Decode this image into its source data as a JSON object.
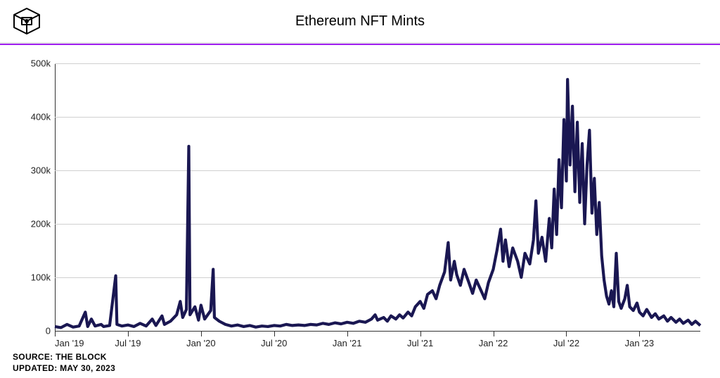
{
  "header": {
    "title": "Ethereum NFT Mints",
    "accent_color": "#a020f0",
    "border_color": "#e5e5e5"
  },
  "footer": {
    "source_label": "SOURCE: THE BLOCK",
    "updated_label": "UPDATED: MAY 30, 2023"
  },
  "chart": {
    "type": "line",
    "line_color": "#1a1752",
    "line_width": 1.4,
    "background_color": "#ffffff",
    "grid_color": "#d0d0d0",
    "y": {
      "min": 0,
      "max": 500000,
      "ticks": [
        0,
        100000,
        200000,
        300000,
        400000,
        500000
      ],
      "tick_labels": [
        "0",
        "100k",
        "200k",
        "300k",
        "400k",
        "500k"
      ],
      "label_fontsize": 13
    },
    "x": {
      "min": 0,
      "max": 53,
      "ticks": [
        0,
        6,
        12,
        18,
        24,
        30,
        36,
        42,
        48
      ],
      "tick_labels": [
        "Jan '19",
        "Jul '19",
        "Jan '20",
        "Jul '20",
        "Jan '21",
        "Jul '21",
        "Jan '22",
        "Jul '22",
        "Jan '23"
      ],
      "label_fontsize": 13
    },
    "series": [
      {
        "x": 0.0,
        "y": 8000
      },
      {
        "x": 0.5,
        "y": 6000
      },
      {
        "x": 1.0,
        "y": 12000
      },
      {
        "x": 1.5,
        "y": 7000
      },
      {
        "x": 2.0,
        "y": 9000
      },
      {
        "x": 2.5,
        "y": 35000
      },
      {
        "x": 2.7,
        "y": 8000
      },
      {
        "x": 3.0,
        "y": 22000
      },
      {
        "x": 3.3,
        "y": 9000
      },
      {
        "x": 3.8,
        "y": 12000
      },
      {
        "x": 4.0,
        "y": 8000
      },
      {
        "x": 4.5,
        "y": 10000
      },
      {
        "x": 5.0,
        "y": 103000
      },
      {
        "x": 5.1,
        "y": 12000
      },
      {
        "x": 5.5,
        "y": 9000
      },
      {
        "x": 6.0,
        "y": 11000
      },
      {
        "x": 6.5,
        "y": 8000
      },
      {
        "x": 7.0,
        "y": 14000
      },
      {
        "x": 7.5,
        "y": 9000
      },
      {
        "x": 8.0,
        "y": 22000
      },
      {
        "x": 8.3,
        "y": 10000
      },
      {
        "x": 8.8,
        "y": 28000
      },
      {
        "x": 9.0,
        "y": 12000
      },
      {
        "x": 9.5,
        "y": 18000
      },
      {
        "x": 10.0,
        "y": 30000
      },
      {
        "x": 10.3,
        "y": 55000
      },
      {
        "x": 10.5,
        "y": 25000
      },
      {
        "x": 10.8,
        "y": 40000
      },
      {
        "x": 11.0,
        "y": 345000
      },
      {
        "x": 11.1,
        "y": 30000
      },
      {
        "x": 11.5,
        "y": 45000
      },
      {
        "x": 11.8,
        "y": 20000
      },
      {
        "x": 12.0,
        "y": 48000
      },
      {
        "x": 12.3,
        "y": 22000
      },
      {
        "x": 12.8,
        "y": 38000
      },
      {
        "x": 13.0,
        "y": 115000
      },
      {
        "x": 13.1,
        "y": 25000
      },
      {
        "x": 13.5,
        "y": 18000
      },
      {
        "x": 14.0,
        "y": 12000
      },
      {
        "x": 14.5,
        "y": 9000
      },
      {
        "x": 15.0,
        "y": 11000
      },
      {
        "x": 15.5,
        "y": 8000
      },
      {
        "x": 16.0,
        "y": 10000
      },
      {
        "x": 16.5,
        "y": 7000
      },
      {
        "x": 17.0,
        "y": 9000
      },
      {
        "x": 17.5,
        "y": 8000
      },
      {
        "x": 18.0,
        "y": 10000
      },
      {
        "x": 18.5,
        "y": 9000
      },
      {
        "x": 19.0,
        "y": 12000
      },
      {
        "x": 19.5,
        "y": 10000
      },
      {
        "x": 20.0,
        "y": 11000
      },
      {
        "x": 20.5,
        "y": 10000
      },
      {
        "x": 21.0,
        "y": 12000
      },
      {
        "x": 21.5,
        "y": 11000
      },
      {
        "x": 22.0,
        "y": 14000
      },
      {
        "x": 22.5,
        "y": 12000
      },
      {
        "x": 23.0,
        "y": 15000
      },
      {
        "x": 23.5,
        "y": 13000
      },
      {
        "x": 24.0,
        "y": 16000
      },
      {
        "x": 24.5,
        "y": 14000
      },
      {
        "x": 25.0,
        "y": 18000
      },
      {
        "x": 25.5,
        "y": 16000
      },
      {
        "x": 26.0,
        "y": 22000
      },
      {
        "x": 26.3,
        "y": 30000
      },
      {
        "x": 26.5,
        "y": 20000
      },
      {
        "x": 27.0,
        "y": 25000
      },
      {
        "x": 27.3,
        "y": 18000
      },
      {
        "x": 27.6,
        "y": 28000
      },
      {
        "x": 28.0,
        "y": 22000
      },
      {
        "x": 28.3,
        "y": 30000
      },
      {
        "x": 28.6,
        "y": 24000
      },
      {
        "x": 29.0,
        "y": 35000
      },
      {
        "x": 29.3,
        "y": 28000
      },
      {
        "x": 29.6,
        "y": 45000
      },
      {
        "x": 30.0,
        "y": 55000
      },
      {
        "x": 30.3,
        "y": 42000
      },
      {
        "x": 30.6,
        "y": 68000
      },
      {
        "x": 31.0,
        "y": 75000
      },
      {
        "x": 31.3,
        "y": 60000
      },
      {
        "x": 31.6,
        "y": 85000
      },
      {
        "x": 32.0,
        "y": 110000
      },
      {
        "x": 32.3,
        "y": 165000
      },
      {
        "x": 32.5,
        "y": 95000
      },
      {
        "x": 32.8,
        "y": 130000
      },
      {
        "x": 33.0,
        "y": 105000
      },
      {
        "x": 33.3,
        "y": 85000
      },
      {
        "x": 33.6,
        "y": 115000
      },
      {
        "x": 34.0,
        "y": 90000
      },
      {
        "x": 34.3,
        "y": 70000
      },
      {
        "x": 34.6,
        "y": 95000
      },
      {
        "x": 35.0,
        "y": 75000
      },
      {
        "x": 35.3,
        "y": 60000
      },
      {
        "x": 35.6,
        "y": 90000
      },
      {
        "x": 36.0,
        "y": 115000
      },
      {
        "x": 36.3,
        "y": 150000
      },
      {
        "x": 36.6,
        "y": 190000
      },
      {
        "x": 36.8,
        "y": 130000
      },
      {
        "x": 37.0,
        "y": 170000
      },
      {
        "x": 37.3,
        "y": 120000
      },
      {
        "x": 37.6,
        "y": 155000
      },
      {
        "x": 38.0,
        "y": 130000
      },
      {
        "x": 38.3,
        "y": 100000
      },
      {
        "x": 38.6,
        "y": 145000
      },
      {
        "x": 39.0,
        "y": 125000
      },
      {
        "x": 39.3,
        "y": 170000
      },
      {
        "x": 39.5,
        "y": 243000
      },
      {
        "x": 39.7,
        "y": 145000
      },
      {
        "x": 40.0,
        "y": 175000
      },
      {
        "x": 40.3,
        "y": 130000
      },
      {
        "x": 40.6,
        "y": 210000
      },
      {
        "x": 40.8,
        "y": 155000
      },
      {
        "x": 41.0,
        "y": 265000
      },
      {
        "x": 41.2,
        "y": 180000
      },
      {
        "x": 41.4,
        "y": 320000
      },
      {
        "x": 41.6,
        "y": 230000
      },
      {
        "x": 41.8,
        "y": 395000
      },
      {
        "x": 42.0,
        "y": 280000
      },
      {
        "x": 42.1,
        "y": 470000
      },
      {
        "x": 42.3,
        "y": 310000
      },
      {
        "x": 42.5,
        "y": 420000
      },
      {
        "x": 42.7,
        "y": 260000
      },
      {
        "x": 42.9,
        "y": 390000
      },
      {
        "x": 43.1,
        "y": 240000
      },
      {
        "x": 43.3,
        "y": 350000
      },
      {
        "x": 43.5,
        "y": 200000
      },
      {
        "x": 43.7,
        "y": 310000
      },
      {
        "x": 43.9,
        "y": 375000
      },
      {
        "x": 44.1,
        "y": 220000
      },
      {
        "x": 44.3,
        "y": 285000
      },
      {
        "x": 44.5,
        "y": 180000
      },
      {
        "x": 44.7,
        "y": 240000
      },
      {
        "x": 44.9,
        "y": 140000
      },
      {
        "x": 45.1,
        "y": 95000
      },
      {
        "x": 45.3,
        "y": 65000
      },
      {
        "x": 45.5,
        "y": 50000
      },
      {
        "x": 45.7,
        "y": 75000
      },
      {
        "x": 45.9,
        "y": 45000
      },
      {
        "x": 46.1,
        "y": 145000
      },
      {
        "x": 46.3,
        "y": 55000
      },
      {
        "x": 46.5,
        "y": 42000
      },
      {
        "x": 46.8,
        "y": 60000
      },
      {
        "x": 47.0,
        "y": 85000
      },
      {
        "x": 47.2,
        "y": 45000
      },
      {
        "x": 47.5,
        "y": 38000
      },
      {
        "x": 47.8,
        "y": 52000
      },
      {
        "x": 48.0,
        "y": 35000
      },
      {
        "x": 48.3,
        "y": 28000
      },
      {
        "x": 48.6,
        "y": 40000
      },
      {
        "x": 49.0,
        "y": 25000
      },
      {
        "x": 49.3,
        "y": 32000
      },
      {
        "x": 49.6,
        "y": 22000
      },
      {
        "x": 50.0,
        "y": 28000
      },
      {
        "x": 50.3,
        "y": 18000
      },
      {
        "x": 50.6,
        "y": 25000
      },
      {
        "x": 51.0,
        "y": 16000
      },
      {
        "x": 51.3,
        "y": 22000
      },
      {
        "x": 51.6,
        "y": 14000
      },
      {
        "x": 52.0,
        "y": 20000
      },
      {
        "x": 52.3,
        "y": 12000
      },
      {
        "x": 52.6,
        "y": 18000
      },
      {
        "x": 53.0,
        "y": 10000
      }
    ]
  }
}
